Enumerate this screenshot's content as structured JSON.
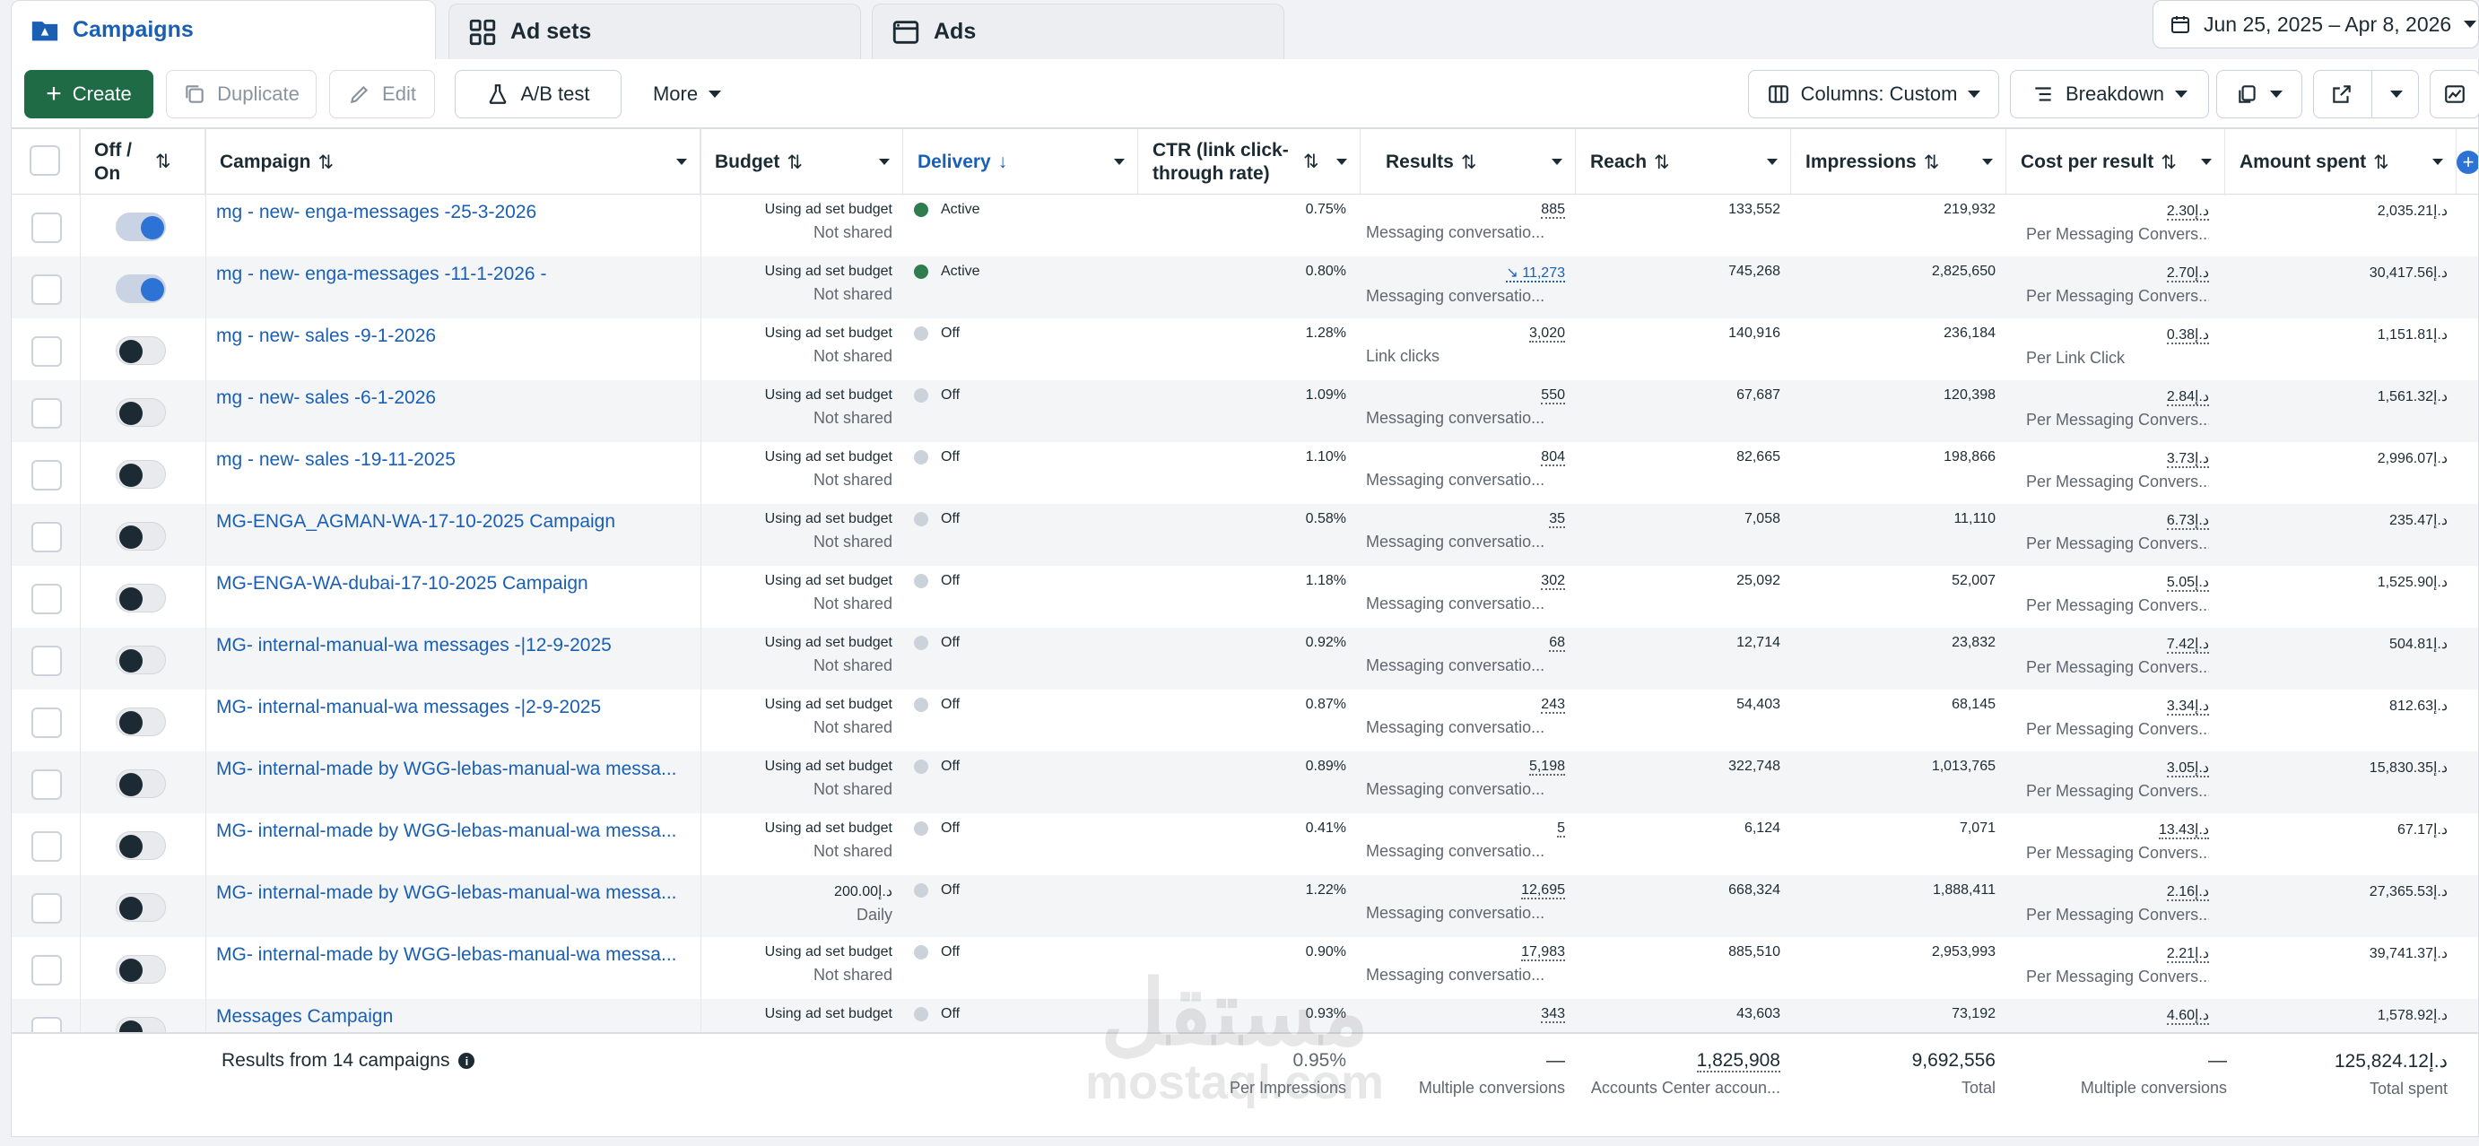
{
  "tabs": [
    {
      "label": "Campaigns",
      "icon": "campaign-folder-icon"
    },
    {
      "label": "Ad sets",
      "icon": "adsets-grid-icon"
    },
    {
      "label": "Ads",
      "icon": "ads-window-icon"
    }
  ],
  "date_range": "Jun 25, 2025 – Apr 8, 2026",
  "toolbar": {
    "create": "Create",
    "duplicate": "Duplicate",
    "edit": "Edit",
    "ab_test": "A/B test",
    "more": "More",
    "columns": "Columns: Custom",
    "breakdown": "Breakdown"
  },
  "headers": {
    "offon": "Off / On",
    "campaign": "Campaign",
    "budget": "Budget",
    "delivery": "Delivery",
    "ctr": "CTR (link click-through rate)",
    "results": "Results",
    "reach": "Reach",
    "impressions": "Impressions",
    "cpr": "Cost per result",
    "amount": "Amount spent"
  },
  "rows": [
    {
      "on": true,
      "name": "mg - new- enga-messages -25-3-2026",
      "budget": "Using ad set budget",
      "budget_sub": "Not shared",
      "delivery": "Active",
      "ctr": "0.75%",
      "results": "885",
      "results_sub": "Messaging conversatio...",
      "reach": "133,552",
      "impressions": "219,932",
      "cpr": "2.30د.إ",
      "cpr_sub": "Per Messaging Convers...",
      "amount": "2,035.21د.إ"
    },
    {
      "on": true,
      "name": "mg - new- enga-messages -11-1-2026 -",
      "budget": "Using ad set budget",
      "budget_sub": "Not shared",
      "delivery": "Active",
      "ctr": "0.80%",
      "results": "↘ 11,273",
      "results_sub": "Messaging conversatio...",
      "reach": "745,268",
      "impressions": "2,825,650",
      "cpr": "2.70د.إ",
      "cpr_sub": "Per Messaging Convers...",
      "amount": "30,417.56د.إ"
    },
    {
      "on": false,
      "name": "mg - new- sales -9-1-2026",
      "budget": "Using ad set budget",
      "budget_sub": "Not shared",
      "delivery": "Off",
      "ctr": "1.28%",
      "results": "3,020",
      "results_sub": "Link clicks",
      "reach": "140,916",
      "impressions": "236,184",
      "cpr": "0.38د.إ",
      "cpr_sub": "Per Link Click",
      "amount": "1,151.81د.إ"
    },
    {
      "on": false,
      "name": "mg - new- sales -6-1-2026",
      "budget": "Using ad set budget",
      "budget_sub": "Not shared",
      "delivery": "Off",
      "ctr": "1.09%",
      "results": "550",
      "results_sub": "Messaging conversatio...",
      "reach": "67,687",
      "impressions": "120,398",
      "cpr": "2.84د.إ",
      "cpr_sub": "Per Messaging Convers...",
      "amount": "1,561.32د.إ"
    },
    {
      "on": false,
      "name": "mg - new- sales -19-11-2025",
      "budget": "Using ad set budget",
      "budget_sub": "Not shared",
      "delivery": "Off",
      "ctr": "1.10%",
      "results": "804",
      "results_sub": "Messaging conversatio...",
      "reach": "82,665",
      "impressions": "198,866",
      "cpr": "3.73د.إ",
      "cpr_sub": "Per Messaging Convers...",
      "amount": "2,996.07د.إ"
    },
    {
      "on": false,
      "name": "MG-ENGA_AGMAN-WA-17-10-2025 Campaign",
      "budget": "Using ad set budget",
      "budget_sub": "Not shared",
      "delivery": "Off",
      "ctr": "0.58%",
      "results": "35",
      "results_sub": "Messaging conversatio...",
      "reach": "7,058",
      "impressions": "11,110",
      "cpr": "6.73د.إ",
      "cpr_sub": "Per Messaging Convers...",
      "amount": "235.47د.إ"
    },
    {
      "on": false,
      "name": "MG-ENGA-WA-dubai-17-10-2025 Campaign",
      "budget": "Using ad set budget",
      "budget_sub": "Not shared",
      "delivery": "Off",
      "ctr": "1.18%",
      "results": "302",
      "results_sub": "Messaging conversatio...",
      "reach": "25,092",
      "impressions": "52,007",
      "cpr": "5.05د.إ",
      "cpr_sub": "Per Messaging Convers...",
      "amount": "1,525.90د.إ"
    },
    {
      "on": false,
      "name": "MG- internal-manual-wa messages -|12-9-2025",
      "budget": "Using ad set budget",
      "budget_sub": "Not shared",
      "delivery": "Off",
      "ctr": "0.92%",
      "results": "68",
      "results_sub": "Messaging conversatio...",
      "reach": "12,714",
      "impressions": "23,832",
      "cpr": "7.42د.إ",
      "cpr_sub": "Per Messaging Convers...",
      "amount": "504.81د.إ"
    },
    {
      "on": false,
      "name": "MG- internal-manual-wa messages -|2-9-2025",
      "budget": "Using ad set budget",
      "budget_sub": "Not shared",
      "delivery": "Off",
      "ctr": "0.87%",
      "results": "243",
      "results_sub": "Messaging conversatio...",
      "reach": "54,403",
      "impressions": "68,145",
      "cpr": "3.34د.إ",
      "cpr_sub": "Per Messaging Convers...",
      "amount": "812.63د.إ"
    },
    {
      "on": false,
      "name": "MG- internal-made by WGG-lebas-manual-wa messa...",
      "budget": "Using ad set budget",
      "budget_sub": "Not shared",
      "delivery": "Off",
      "ctr": "0.89%",
      "results": "5,198",
      "results_sub": "Messaging conversatio...",
      "reach": "322,748",
      "impressions": "1,013,765",
      "cpr": "3.05د.إ",
      "cpr_sub": "Per Messaging Convers...",
      "amount": "15,830.35د.إ"
    },
    {
      "on": false,
      "name": "MG- internal-made by WGG-lebas-manual-wa messa...",
      "budget": "Using ad set budget",
      "budget_sub": "Not shared",
      "delivery": "Off",
      "ctr": "0.41%",
      "results": "5",
      "results_sub": "Messaging conversatio...",
      "reach": "6,124",
      "impressions": "7,071",
      "cpr": "13.43د.إ",
      "cpr_sub": "Per Messaging Convers...",
      "amount": "67.17د.إ"
    },
    {
      "on": false,
      "name": "MG- internal-made by WGG-lebas-manual-wa messa...",
      "budget": "200.00د.إ",
      "budget_sub": "Daily",
      "delivery": "Off",
      "ctr": "1.22%",
      "results": "12,695",
      "results_sub": "Messaging conversatio...",
      "reach": "668,324",
      "impressions": "1,888,411",
      "cpr": "2.16د.إ",
      "cpr_sub": "Per Messaging Convers...",
      "amount": "27,365.53د.إ"
    },
    {
      "on": false,
      "name": "MG- internal-made by WGG-lebas-manual-wa messa...",
      "budget": "Using ad set budget",
      "budget_sub": "Not shared",
      "delivery": "Off",
      "ctr": "0.90%",
      "results": "17,983",
      "results_sub": "Messaging conversatio...",
      "reach": "885,510",
      "impressions": "2,953,993",
      "cpr": "2.21د.إ",
      "cpr_sub": "Per Messaging Convers...",
      "amount": "39,741.37د.إ"
    },
    {
      "on": false,
      "name": "Messages Campaign",
      "budget": "Using ad set budget",
      "budget_sub": "",
      "delivery": "Off",
      "ctr": "0.93%",
      "results": "343",
      "results_sub": "",
      "reach": "43,603",
      "impressions": "73,192",
      "cpr": "4.60د.إ",
      "cpr_sub": "",
      "amount": "1,578.92د.إ"
    }
  ],
  "totals": {
    "label": "Results from 14 campaigns",
    "ctr": "0.95%",
    "ctr_sub": "Per Impressions",
    "results": "—",
    "results_sub": "Multiple conversions",
    "reach": "1,825,908",
    "reach_sub": "Accounts Center accoun...",
    "impressions": "9,692,556",
    "impressions_sub": "Total",
    "cpr": "—",
    "cpr_sub": "Multiple conversions",
    "amount": "125,824.12د.إ",
    "amount_sub": "Total spent"
  },
  "watermark": {
    "arabic": "مستقل",
    "latin": "mostaql.com"
  },
  "colors": {
    "accent": "#1a5fb4",
    "create": "#1f6b46",
    "active_dot": "#2f7d4f",
    "toggle_on": "#2d73d6"
  }
}
